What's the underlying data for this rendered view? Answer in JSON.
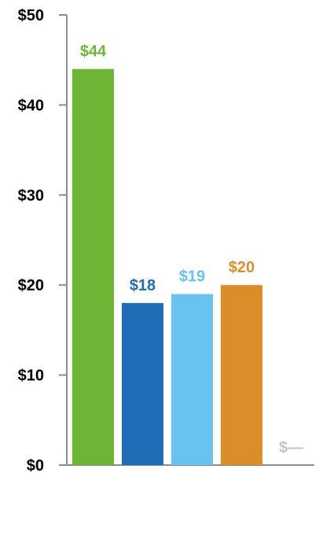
{
  "chart_data": {
    "type": "bar",
    "categories": [
      "",
      "",
      "",
      "",
      ""
    ],
    "values": [
      44,
      18,
      19,
      20,
      null
    ],
    "data_labels": [
      "$44",
      "$18",
      "$19",
      "$20",
      "$—"
    ],
    "colors": [
      "#6db534",
      "#1f6db5",
      "#68c3ef",
      "#d98e2a",
      "#c4c4c4"
    ],
    "ylim": [
      0,
      50
    ],
    "yticks": [
      0,
      10,
      20,
      30,
      40,
      50
    ],
    "ytick_labels": [
      "$0",
      "$10",
      "$20",
      "$30",
      "$40",
      "$50"
    ],
    "title": "",
    "xlabel": "",
    "ylabel": "",
    "grid": false,
    "axis_color": "#8c8c8c"
  }
}
